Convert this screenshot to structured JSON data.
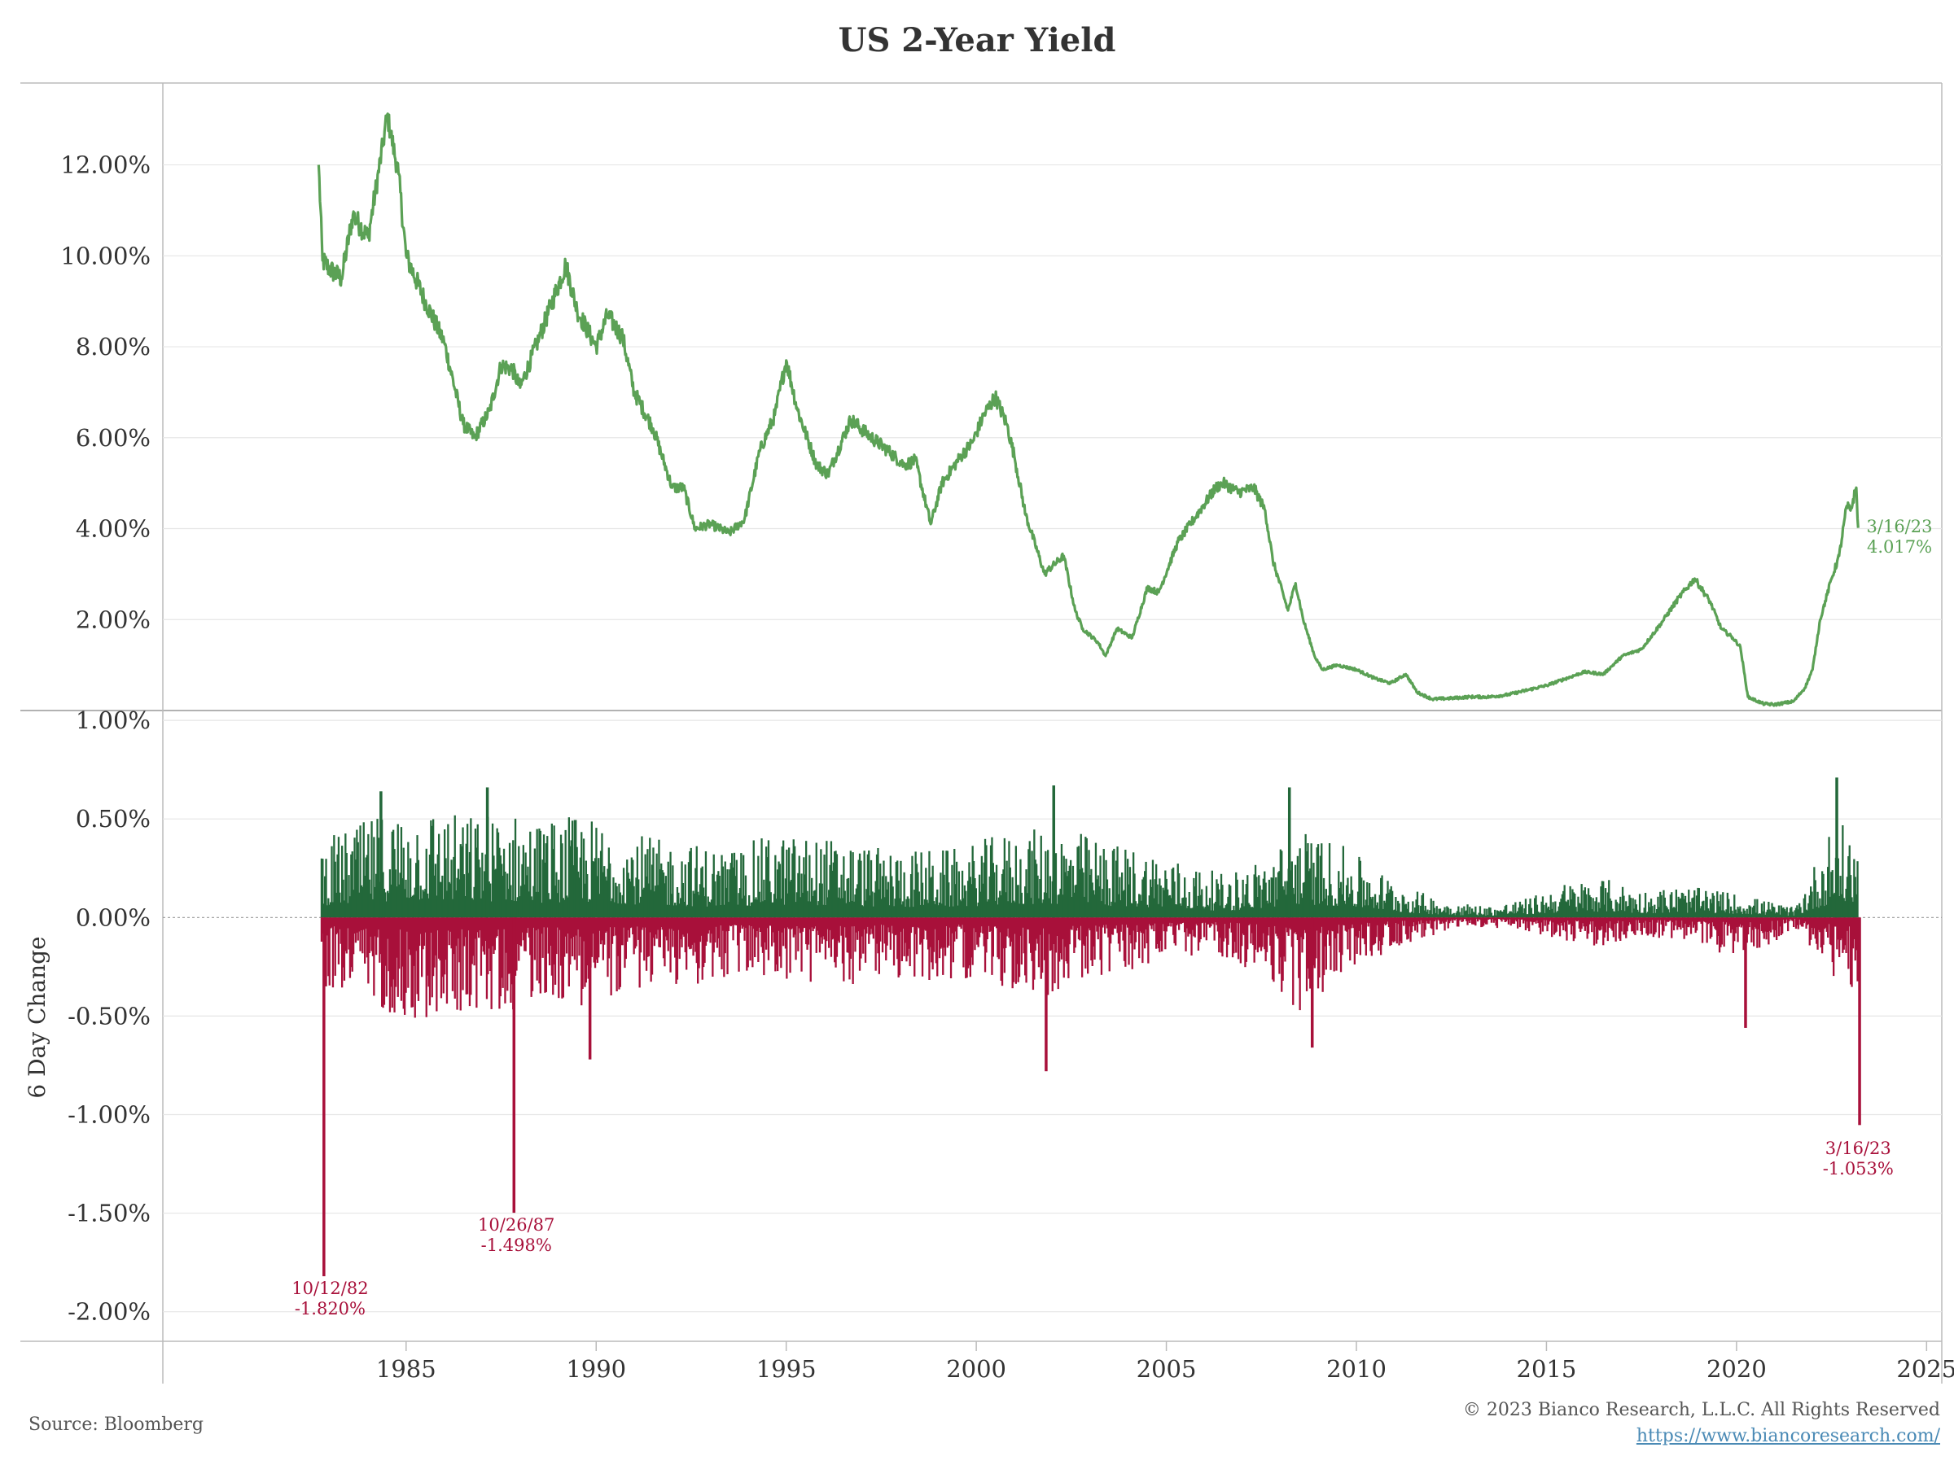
{
  "colors": {
    "line": "#5ba155",
    "positive": "#23683a",
    "negative": "#a8103a",
    "grid": "#e6e6e6",
    "axis": "#bbbbbb",
    "text": "#333333",
    "link": "#4a8ab5"
  },
  "footer": {
    "source": "Source: Bloomberg",
    "copyright": "© 2023 Bianco Research, L.L.C. All Rights Reserved",
    "url": "https://www.biancoresearch.com/"
  },
  "chart_data": [
    {
      "id": "yield",
      "type": "line",
      "title": "US 2-Year Yield",
      "xlabel": "",
      "ylabel": "",
      "xlim": [
        1978.6,
        2025.4
      ],
      "ylim": [
        0,
        13.8
      ],
      "grid": true,
      "yticks": [
        {
          "value": 2,
          "label": "2.00%"
        },
        {
          "value": 4,
          "label": "4.00%"
        },
        {
          "value": 6,
          "label": "6.00%"
        },
        {
          "value": 8,
          "label": "8.00%"
        },
        {
          "value": 10,
          "label": "10.00%"
        },
        {
          "value": 12,
          "label": "12.00%"
        }
      ],
      "series": [
        {
          "name": "US 2-Year Yield",
          "x": [
            1982.7,
            1982.8,
            1983.0,
            1983.3,
            1983.6,
            1984.0,
            1984.4,
            1984.5,
            1984.8,
            1985.0,
            1985.5,
            1986.0,
            1986.5,
            1986.8,
            1987.2,
            1987.5,
            1987.8,
            1988.0,
            1988.5,
            1989.2,
            1989.5,
            1990.0,
            1990.3,
            1990.7,
            1991.0,
            1991.5,
            1992.0,
            1992.3,
            1992.6,
            1993.0,
            1993.5,
            1993.9,
            1994.3,
            1994.7,
            1995.0,
            1995.3,
            1995.8,
            1996.1,
            1996.7,
            1997.1,
            1997.7,
            1998.1,
            1998.4,
            1998.8,
            1999.1,
            1999.6,
            1999.9,
            2000.2,
            2000.5,
            2000.8,
            2001.0,
            2001.3,
            2001.8,
            2001.9,
            2002.3,
            2002.6,
            2002.8,
            2003.2,
            2003.4,
            2003.7,
            2004.1,
            2004.5,
            2004.8,
            2005.3,
            2005.8,
            2006.3,
            2006.5,
            2006.9,
            2007.3,
            2007.6,
            2007.8,
            2008.2,
            2008.4,
            2008.6,
            2008.9,
            2009.1,
            2009.5,
            2010.0,
            2010.5,
            2010.9,
            2011.3,
            2011.6,
            2012.0,
            2012.5,
            2013.0,
            2013.5,
            2014.0,
            2014.5,
            2015.0,
            2015.5,
            2016.0,
            2016.5,
            2017.0,
            2017.5,
            2018.0,
            2018.5,
            2018.9,
            2019.3,
            2019.6,
            2019.9,
            2020.1,
            2020.3,
            2020.7,
            2021.0,
            2021.5,
            2021.8,
            2022.0,
            2022.2,
            2022.5,
            2022.7,
            2022.9,
            2023.0,
            2023.15,
            2023.2
          ],
          "values": [
            12.0,
            9.9,
            9.7,
            9.5,
            10.9,
            10.4,
            12.5,
            13.1,
            11.8,
            10.0,
            9.0,
            8.1,
            6.3,
            6.0,
            6.6,
            7.6,
            7.5,
            7.1,
            8.2,
            9.8,
            8.8,
            8.0,
            8.7,
            8.2,
            7.0,
            6.2,
            4.9,
            4.9,
            4.0,
            4.1,
            3.9,
            4.2,
            5.7,
            6.5,
            7.7,
            6.6,
            5.4,
            5.2,
            6.4,
            6.1,
            5.7,
            5.4,
            5.5,
            4.1,
            5.0,
            5.6,
            5.9,
            6.5,
            6.9,
            6.3,
            5.6,
            4.3,
            3.0,
            3.1,
            3.4,
            2.2,
            1.8,
            1.5,
            1.2,
            1.8,
            1.6,
            2.7,
            2.6,
            3.7,
            4.3,
            4.9,
            5.0,
            4.8,
            4.9,
            4.4,
            3.3,
            2.2,
            2.8,
            2.0,
            1.2,
            0.9,
            1.0,
            0.9,
            0.7,
            0.6,
            0.8,
            0.4,
            0.25,
            0.27,
            0.3,
            0.3,
            0.35,
            0.45,
            0.55,
            0.7,
            0.85,
            0.8,
            1.2,
            1.35,
            1.9,
            2.5,
            2.9,
            2.4,
            1.8,
            1.6,
            1.4,
            0.3,
            0.15,
            0.13,
            0.2,
            0.5,
            0.9,
            2.0,
            2.9,
            3.4,
            4.5,
            4.4,
            4.9,
            4.017
          ]
        }
      ],
      "annotations": [
        {
          "date": "3/16/23",
          "value": "4.017%"
        }
      ]
    },
    {
      "id": "six-day-change",
      "type": "bar",
      "title": "",
      "xlabel": "",
      "ylabel": "6 Day Change",
      "xlim": [
        1978.6,
        2025.4
      ],
      "ylim": [
        -2.15,
        1.05
      ],
      "grid": true,
      "yticks": [
        {
          "value": -2.0,
          "label": "-2.00%"
        },
        {
          "value": -1.5,
          "label": "-1.50%"
        },
        {
          "value": -1.0,
          "label": "-1.00%"
        },
        {
          "value": -0.5,
          "label": "-0.50%"
        },
        {
          "value": 0.0,
          "label": "0.00%"
        },
        {
          "value": 0.5,
          "label": "0.50%"
        },
        {
          "value": 1.0,
          "label": "1.00%"
        }
      ],
      "xticks": [
        1985,
        1990,
        1995,
        2000,
        2005,
        2010,
        2015,
        2020,
        2025
      ],
      "envelope": {
        "x": [
          1982.7,
          1983.5,
          1984.5,
          1985.5,
          1986.5,
          1987.5,
          1988.5,
          1989.5,
          1990.5,
          1991.5,
          1992.5,
          1993.5,
          1994.5,
          1995.5,
          1996.5,
          1997.5,
          1998.5,
          1999.5,
          2000.5,
          2001.5,
          2002.5,
          2003.5,
          2004.5,
          2005.5,
          2006.5,
          2007.5,
          2008.5,
          2009.5,
          2010.5,
          2011.5,
          2012.5,
          2013.5,
          2014.5,
          2015.5,
          2016.5,
          2017.5,
          2018.5,
          2019.5,
          2020.5,
          2021.5,
          2022.5,
          2023.2
        ],
        "up": [
          0.4,
          0.45,
          0.55,
          0.58,
          0.52,
          0.55,
          0.5,
          0.52,
          0.48,
          0.4,
          0.38,
          0.35,
          0.42,
          0.42,
          0.4,
          0.35,
          0.35,
          0.35,
          0.42,
          0.45,
          0.45,
          0.38,
          0.35,
          0.28,
          0.22,
          0.3,
          0.45,
          0.38,
          0.25,
          0.14,
          0.08,
          0.06,
          0.1,
          0.18,
          0.2,
          0.14,
          0.16,
          0.14,
          0.1,
          0.05,
          0.48,
          0.45
        ],
        "down": [
          0.35,
          0.4,
          0.48,
          0.55,
          0.48,
          0.5,
          0.4,
          0.45,
          0.4,
          0.35,
          0.35,
          0.32,
          0.3,
          0.35,
          0.35,
          0.3,
          0.35,
          0.3,
          0.35,
          0.42,
          0.35,
          0.3,
          0.25,
          0.2,
          0.2,
          0.3,
          0.5,
          0.3,
          0.2,
          0.12,
          0.06,
          0.05,
          0.08,
          0.12,
          0.15,
          0.1,
          0.12,
          0.18,
          0.2,
          0.05,
          0.3,
          0.4
        ]
      },
      "extremes": [
        {
          "x": 1982.8,
          "value": -1.82
        },
        {
          "x": 1987.8,
          "value": -1.498
        },
        {
          "x": 2023.2,
          "value": -1.053
        },
        {
          "x": 2001.8,
          "value": -0.78
        },
        {
          "x": 2008.8,
          "value": -0.66
        },
        {
          "x": 1989.8,
          "value": -0.72
        },
        {
          "x": 2020.2,
          "value": -0.56
        },
        {
          "x": 2022.6,
          "value": 0.71
        },
        {
          "x": 2002.0,
          "value": 0.67
        },
        {
          "x": 2008.2,
          "value": 0.66
        },
        {
          "x": 1987.1,
          "value": 0.66
        },
        {
          "x": 1984.3,
          "value": 0.64
        }
      ],
      "annotations": [
        {
          "date": "10/12/82",
          "value": "-1.820%"
        },
        {
          "date": "10/26/87",
          "value": "-1.498%"
        },
        {
          "date": "3/16/23",
          "value": "-1.053%"
        }
      ]
    }
  ]
}
